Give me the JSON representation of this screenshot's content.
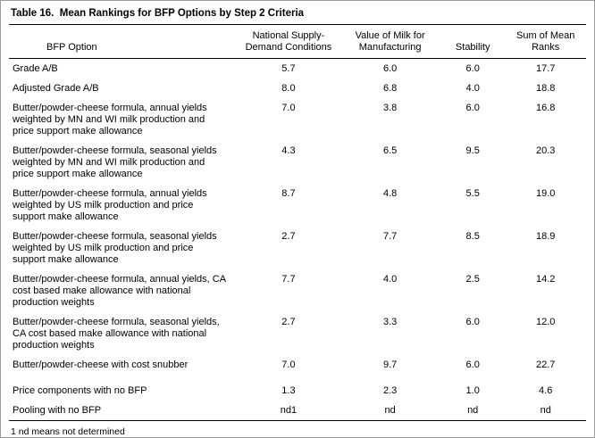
{
  "title": "Table 16.  Mean Rankings for BFP Options by Step 2 Criteria",
  "table": {
    "columns": {
      "option": "BFP Option",
      "col1": "National Supply-Demand Conditions",
      "col2": "Value of Milk for Manufacturing",
      "col3": "Stability",
      "col4": "Sum of Mean Ranks"
    },
    "rows": [
      {
        "option": "Grade A/B",
        "values": [
          "5.7",
          "6.0",
          "6.0",
          "17.7"
        ]
      },
      {
        "option": "Adjusted Grade A/B",
        "values": [
          "8.0",
          "6.8",
          "4.0",
          "18.8"
        ]
      },
      {
        "option": "Butter/powder-cheese formula, annual yields weighted by MN and WI milk production and price support make allowance",
        "values": [
          "7.0",
          "3.8",
          "6.0",
          "16.8"
        ]
      },
      {
        "option": "Butter/powder-cheese formula, seasonal yields weighted by MN and WI milk production and price support make allowance",
        "values": [
          "4.3",
          "6.5",
          "9.5",
          "20.3"
        ]
      },
      {
        "option": "Butter/powder-cheese formula, annual yields weighted by US milk production and price support make allowance",
        "values": [
          "8.7",
          "4.8",
          "5.5",
          "19.0"
        ]
      },
      {
        "option": "Butter/powder-cheese formula, seasonal yields weighted by US milk production and price support make allowance",
        "values": [
          "2.7",
          "7.7",
          "8.5",
          "18.9"
        ]
      },
      {
        "option": "Butter/powder-cheese formula, annual yields, CA cost based make allowance with national production weights",
        "values": [
          "7.7",
          "4.0",
          "2.5",
          "14.2"
        ]
      },
      {
        "option": "Butter/powder-cheese formula, seasonal yields, CA cost based make allowance with national production weights",
        "values": [
          "2.7",
          "3.3",
          "6.0",
          "12.0"
        ]
      },
      {
        "option": "Butter/powder-cheese with cost snubber",
        "values": [
          "7.0",
          "9.7",
          "6.0",
          "22.7"
        ]
      },
      {
        "option": "Price components with no BFP",
        "values": [
          "1.3",
          "2.3",
          "1.0",
          "4.6"
        ]
      },
      {
        "option": "Pooling with no BFP",
        "values": [
          "nd1",
          "nd",
          "nd",
          "nd"
        ]
      }
    ]
  },
  "footnote": "1 nd means not determined"
}
